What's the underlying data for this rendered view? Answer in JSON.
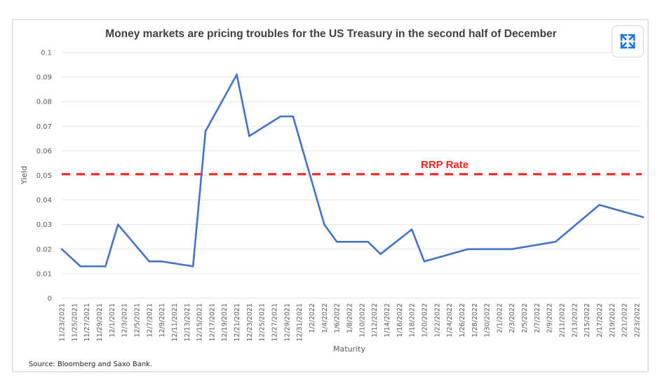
{
  "expand_button": {
    "icon": "expand-arrows-icon",
    "color": "#1a73e8"
  },
  "chart_data": {
    "type": "line",
    "title": "Money markets are pricing troubles for the US Treasury in the second half of December",
    "xlabel": "Maturity",
    "ylabel": "Yield",
    "ylim": [
      0,
      0.1
    ],
    "yticks": [
      "0",
      "0.01",
      "0.02",
      "0.03",
      "0.04",
      "0.05",
      "0.06",
      "0.07",
      "0.08",
      "0.09",
      "0.1"
    ],
    "xlim": [
      "11/23/2021",
      "2/23/2022"
    ],
    "xticks": [
      "11/23/2021",
      "11/25/2021",
      "11/27/2021",
      "11/29/2021",
      "12/1/2021",
      "12/3/2021",
      "12/5/2021",
      "12/7/2021",
      "12/9/2021",
      "12/11/2021",
      "12/13/2021",
      "12/15/2021",
      "12/17/2021",
      "12/19/2021",
      "12/21/2021",
      "12/23/2021",
      "12/25/2021",
      "12/27/2021",
      "12/29/2021",
      "12/31/2021",
      "1/2/2022",
      "1/4/2022",
      "1/6/2022",
      "1/8/2022",
      "1/10/2022",
      "1/12/2022",
      "1/14/2022",
      "1/16/2022",
      "1/18/2022",
      "1/20/2022",
      "1/22/2022",
      "1/24/2022",
      "1/26/2022",
      "1/28/2022",
      "1/30/2022",
      "2/1/2022",
      "2/3/2022",
      "2/5/2022",
      "2/7/2022",
      "2/9/2022",
      "2/11/2022",
      "2/13/2022",
      "2/15/2022",
      "2/17/2022",
      "2/19/2022",
      "2/21/2022",
      "2/23/2022"
    ],
    "grid": true,
    "series": [
      {
        "name": "Yield",
        "color": "#4472c4",
        "points": [
          {
            "x": "11/23/2021",
            "y": 0.02
          },
          {
            "x": "11/26/2021",
            "y": 0.013
          },
          {
            "x": "11/30/2021",
            "y": 0.013
          },
          {
            "x": "12/2/2021",
            "y": 0.03
          },
          {
            "x": "12/7/2021",
            "y": 0.015
          },
          {
            "x": "12/9/2021",
            "y": 0.015
          },
          {
            "x": "12/14/2021",
            "y": 0.013
          },
          {
            "x": "12/16/2021",
            "y": 0.068
          },
          {
            "x": "12/21/2021",
            "y": 0.091
          },
          {
            "x": "12/23/2021",
            "y": 0.066
          },
          {
            "x": "12/28/2021",
            "y": 0.074
          },
          {
            "x": "12/30/2021",
            "y": 0.074
          },
          {
            "x": "1/4/2022",
            "y": 0.03
          },
          {
            "x": "1/6/2022",
            "y": 0.023
          },
          {
            "x": "1/11/2022",
            "y": 0.023
          },
          {
            "x": "1/13/2022",
            "y": 0.018
          },
          {
            "x": "1/18/2022",
            "y": 0.028
          },
          {
            "x": "1/20/2022",
            "y": 0.015
          },
          {
            "x": "1/27/2022",
            "y": 0.02
          },
          {
            "x": "2/3/2022",
            "y": 0.02
          },
          {
            "x": "2/10/2022",
            "y": 0.023
          },
          {
            "x": "2/17/2022",
            "y": 0.038
          },
          {
            "x": "2/24/2022",
            "y": 0.033
          }
        ]
      }
    ],
    "reference_line": {
      "label": "RRP Rate",
      "y": 0.0505,
      "color": "#ff2020",
      "style": "dashed"
    },
    "source": "Source: Bloomberg and Saxo Bank."
  }
}
